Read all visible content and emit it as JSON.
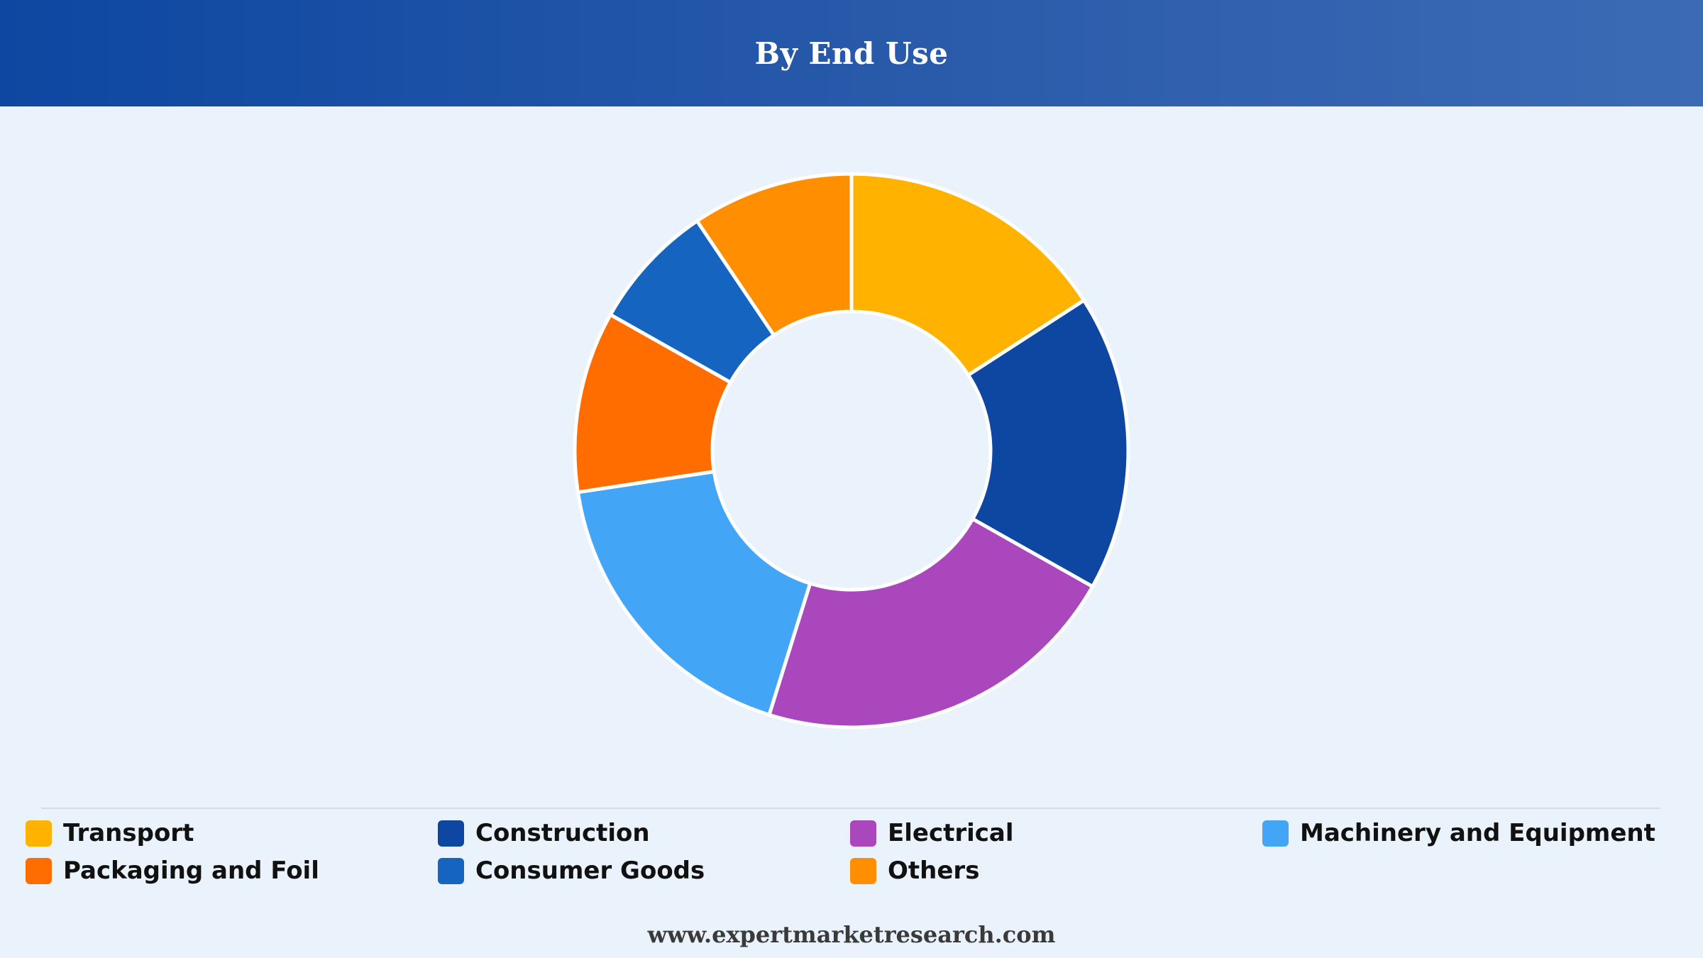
{
  "header": {
    "title": "By End Use"
  },
  "chart_data": {
    "type": "pie",
    "title": "By End Use",
    "donut": true,
    "unit": "%",
    "categories": [
      "Transport",
      "Construction",
      "Electrical",
      "Machinery and Equipment",
      "Packaging and Foil",
      "Consumer Goods",
      "Others"
    ],
    "values": [
      16.5,
      18.0,
      22.5,
      18.5,
      11.0,
      7.7,
      9.8
    ],
    "colors": [
      "#ffb300",
      "#0d47a1",
      "#ab47bc",
      "#42a5f5",
      "#ff6d00",
      "#1565c0",
      "#ff8f00"
    ],
    "legend_position": "bottom"
  },
  "legend": {
    "items": [
      {
        "label": "Transport",
        "color": "#ffb300"
      },
      {
        "label": "Construction",
        "color": "#0d47a1"
      },
      {
        "label": "Electrical",
        "color": "#ab47bc"
      },
      {
        "label": "Machinery and Equipment",
        "color": "#42a5f5"
      },
      {
        "label": "Packaging and Foil",
        "color": "#ff6d00"
      },
      {
        "label": "Consumer Goods",
        "color": "#1565c0"
      },
      {
        "label": "Others",
        "color": "#ff8f00"
      }
    ]
  },
  "footer": {
    "url": "www.expertmarketresearch.com"
  }
}
